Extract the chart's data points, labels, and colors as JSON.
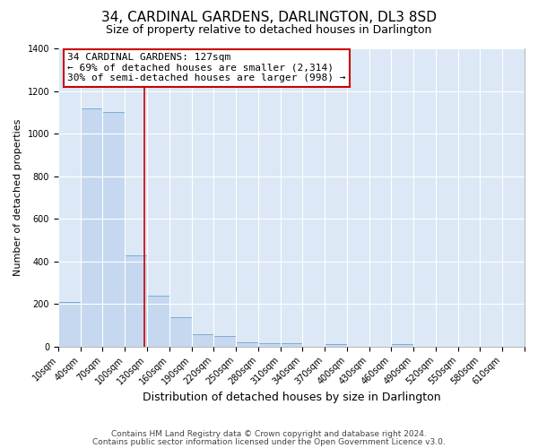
{
  "title": "34, CARDINAL GARDENS, DARLINGTON, DL3 8SD",
  "subtitle": "Size of property relative to detached houses in Darlington",
  "xlabel": "Distribution of detached houses by size in Darlington",
  "ylabel": "Number of detached properties",
  "footnote1": "Contains HM Land Registry data © Crown copyright and database right 2024.",
  "footnote2": "Contains public sector information licensed under the Open Government Licence v3.0.",
  "bin_labels": [
    "10sqm",
    "40sqm",
    "70sqm",
    "100sqm",
    "130sqm",
    "160sqm",
    "190sqm",
    "220sqm",
    "250sqm",
    "280sqm",
    "310sqm",
    "340sqm",
    "370sqm",
    "400sqm",
    "430sqm",
    "460sqm",
    "490sqm",
    "520sqm",
    "550sqm",
    "580sqm",
    "610sqm"
  ],
  "bin_left_edges": [
    10,
    40,
    70,
    100,
    130,
    160,
    190,
    220,
    250,
    280,
    310,
    340,
    370,
    400,
    430,
    460,
    490,
    520,
    550,
    580,
    610
  ],
  "bar_values": [
    210,
    1120,
    1100,
    430,
    240,
    140,
    60,
    48,
    20,
    15,
    15,
    0,
    10,
    0,
    0,
    10,
    0,
    0,
    0,
    0,
    0
  ],
  "bar_color": "#c5d8f0",
  "bar_edge_color": "#7aadd4",
  "property_size": 127,
  "property_line_color": "#cc0000",
  "annotation_text_line1": "34 CARDINAL GARDENS: 127sqm",
  "annotation_text_line2": "← 69% of detached houses are smaller (2,314)",
  "annotation_text_line3": "30% of semi-detached houses are larger (998) →",
  "annotation_border_color": "#cc0000",
  "ylim": [
    0,
    1400
  ],
  "yticks": [
    0,
    200,
    400,
    600,
    800,
    1000,
    1200,
    1400
  ],
  "figure_bg": "#ffffff",
  "plot_bg": "#dce8f5",
  "grid_color": "#ffffff",
  "title_fontsize": 11,
  "subtitle_fontsize": 9,
  "ylabel_fontsize": 8,
  "xlabel_fontsize": 9,
  "annotation_fontsize": 8,
  "tick_fontsize": 7,
  "footnote_fontsize": 6.5
}
